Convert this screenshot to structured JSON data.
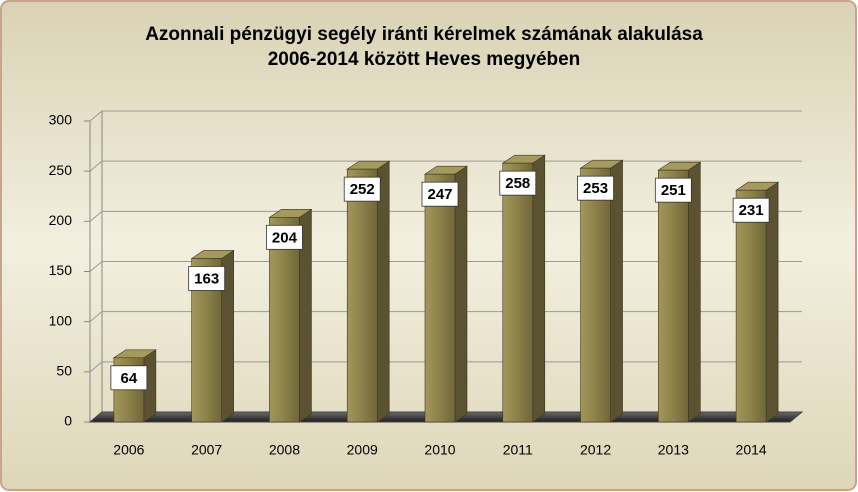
{
  "chart_data": {
    "type": "bar3d",
    "title": [
      "Azonnali pénzügyi segély iránti kérelmek számának alakulása",
      "2006-2014 között Heves megyében"
    ],
    "categories": [
      "2006",
      "2007",
      "2008",
      "2009",
      "2010",
      "2011",
      "2012",
      "2013",
      "2014"
    ],
    "values": [
      64,
      163,
      204,
      252,
      247,
      258,
      253,
      251,
      231
    ],
    "color": "#8c8149",
    "ylim": [
      0,
      300
    ],
    "yticks": [
      0,
      50,
      100,
      150,
      200,
      250,
      300
    ],
    "grid": true
  }
}
